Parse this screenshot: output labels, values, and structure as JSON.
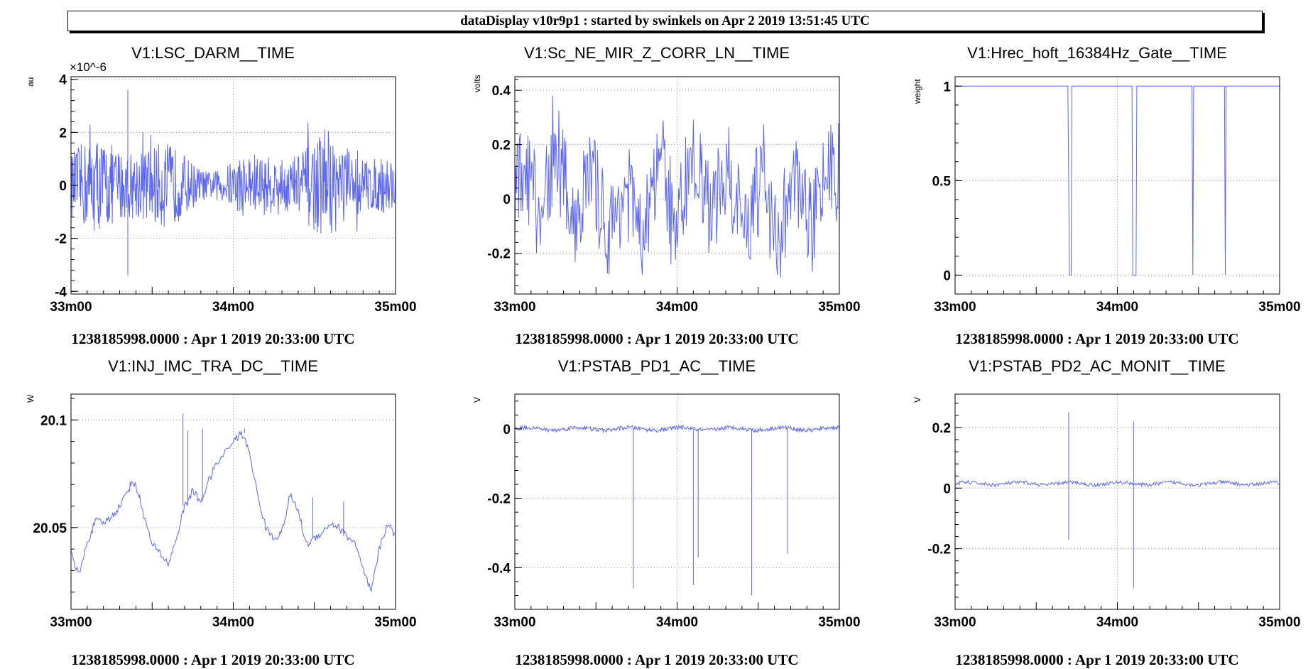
{
  "header": {
    "title": "dataDisplay v10r9p1 : started by swinkels on Apr  2 2019 13:51:45 UTC"
  },
  "footer_text": "1238185998.0000 : Apr  1 2019 20:33:00 UTC",
  "colors": {
    "trace": "#5c67f2",
    "grid": "#9a9a9a",
    "axis": "#000000"
  },
  "chart_data": [
    {
      "type": "line",
      "title": "V1:LSC_DARM__TIME",
      "ylabel": "au",
      "multiplier": "×10^-6",
      "xticks": [
        "33m00",
        "34m00",
        "35m00"
      ],
      "yticks": [
        "-4",
        "-2",
        "0",
        "2",
        "4"
      ],
      "ytick_values": [
        -4,
        -2,
        0,
        2,
        4
      ],
      "ylim": [
        -4.1,
        4.1
      ],
      "footer": "1238185998.0000 : Apr  1 2019 20:33:00 UTC",
      "series": [
        {
          "style": "noise",
          "values": {
            "amp": 1.6,
            "peak_max": 3.6,
            "peak_min": -3.4
          }
        }
      ]
    },
    {
      "type": "line",
      "title": "V1:Sc_NE_MIR_Z_CORR_LN__TIME",
      "ylabel": "volts",
      "xticks": [
        "33m00",
        "34m00",
        "35m00"
      ],
      "yticks": [
        "-0.2",
        "0",
        "0.2",
        "0.4"
      ],
      "ytick_values": [
        -0.2,
        0,
        0.2,
        0.4
      ],
      "ylim": [
        -0.35,
        0.45
      ],
      "footer": "1238185998.0000 : Apr  1 2019 20:33:00 UTC",
      "series": [
        {
          "style": "oscillation",
          "values": {
            "amp": 0.3,
            "max": 0.38,
            "min": -0.29
          }
        }
      ]
    },
    {
      "type": "line",
      "title": "V1:Hrec_hoft_16384Hz_Gate__TIME",
      "ylabel": "weight",
      "xticks": [
        "33m00",
        "34m00",
        "35m00"
      ],
      "yticks": [
        "0",
        "0.5",
        "1"
      ],
      "ytick_values": [
        0,
        0.5,
        1
      ],
      "ylim": [
        -0.1,
        1.05
      ],
      "footer": "1238185998.0000 : Apr  1 2019 20:33:00 UTC",
      "series": [
        {
          "style": "gate",
          "points": [
            [
              0,
              1
            ],
            [
              0.695,
              1
            ],
            [
              0.705,
              0
            ],
            [
              0.715,
              0
            ],
            [
              0.72,
              1
            ],
            [
              1.09,
              1
            ],
            [
              1.095,
              0
            ],
            [
              1.115,
              0
            ],
            [
              1.12,
              1
            ],
            [
              1.46,
              1
            ],
            [
              1.465,
              0
            ],
            [
              1.47,
              1
            ],
            [
              1.66,
              1
            ],
            [
              1.665,
              0
            ],
            [
              1.67,
              1
            ],
            [
              2,
              1
            ]
          ]
        }
      ]
    },
    {
      "type": "line",
      "title": "V1:INJ_IMC_TRA_DC__TIME",
      "ylabel": "W",
      "xticks": [
        "33m00",
        "34m00",
        "35m00"
      ],
      "yticks": [
        "20.05",
        "20.1"
      ],
      "ytick_values": [
        20.05,
        20.1
      ],
      "ylim": [
        20.012,
        20.112
      ],
      "footer": "1238185998.0000 : Apr  1 2019 20:33:00 UTC",
      "series": [
        {
          "style": "drift",
          "points": [
            [
              0,
              20.038
            ],
            [
              0.05,
              20.028
            ],
            [
              0.1,
              20.043
            ],
            [
              0.15,
              20.053
            ],
            [
              0.2,
              20.052
            ],
            [
              0.25,
              20.055
            ],
            [
              0.3,
              20.06
            ],
            [
              0.35,
              20.067
            ],
            [
              0.38,
              20.072
            ],
            [
              0.42,
              20.065
            ],
            [
              0.45,
              20.055
            ],
            [
              0.5,
              20.042
            ],
            [
              0.55,
              20.038
            ],
            [
              0.6,
              20.033
            ],
            [
              0.65,
              20.045
            ],
            [
              0.7,
              20.06
            ],
            [
              0.75,
              20.067
            ],
            [
              0.8,
              20.062
            ],
            [
              0.85,
              20.072
            ],
            [
              0.9,
              20.08
            ],
            [
              1.0,
              20.09
            ],
            [
              1.05,
              20.094
            ],
            [
              1.1,
              20.085
            ],
            [
              1.15,
              20.065
            ],
            [
              1.2,
              20.05
            ],
            [
              1.25,
              20.045
            ],
            [
              1.3,
              20.048
            ],
            [
              1.35,
              20.065
            ],
            [
              1.4,
              20.058
            ],
            [
              1.45,
              20.042
            ],
            [
              1.5,
              20.045
            ],
            [
              1.55,
              20.048
            ],
            [
              1.6,
              20.052
            ],
            [
              1.65,
              20.05
            ],
            [
              1.7,
              20.046
            ],
            [
              1.75,
              20.043
            ],
            [
              1.8,
              20.03
            ],
            [
              1.85,
              20.02
            ],
            [
              1.9,
              20.04
            ],
            [
              1.95,
              20.052
            ],
            [
              2,
              20.046
            ]
          ],
          "spikes": [
            [
              0.69,
              20.103
            ],
            [
              0.72,
              20.095
            ],
            [
              0.81,
              20.096
            ],
            [
              1.07,
              20.096
            ],
            [
              1.49,
              20.064
            ],
            [
              1.68,
              20.062
            ]
          ]
        }
      ]
    },
    {
      "type": "line",
      "title": "V1:PSTAB_PD1_AC__TIME",
      "ylabel": "V",
      "xticks": [
        "33m00",
        "34m00",
        "35m00"
      ],
      "yticks": [
        "-0.4",
        "-0.2",
        "0"
      ],
      "ytick_values": [
        -0.4,
        -0.2,
        0
      ],
      "ylim": [
        -0.52,
        0.1
      ],
      "footer": "1238185998.0000 : Apr  1 2019 20:33:00 UTC",
      "series": [
        {
          "style": "flat_spikes",
          "baseline": 0,
          "spikes": [
            [
              0.73,
              -0.46
            ],
            [
              1.1,
              -0.45
            ],
            [
              1.13,
              -0.37
            ],
            [
              1.46,
              -0.48
            ],
            [
              1.68,
              -0.36
            ]
          ]
        }
      ]
    },
    {
      "type": "line",
      "title": "V1:PSTAB_PD2_AC_MONIT__TIME",
      "ylabel": "V",
      "xticks": [
        "33m00",
        "34m00",
        "35m00"
      ],
      "yticks": [
        "-0.2",
        "0",
        "0.2"
      ],
      "ytick_values": [
        -0.2,
        0,
        0.2
      ],
      "ylim": [
        -0.4,
        0.31
      ],
      "footer": "1238185998.0000 : Apr  1 2019 20:33:00 UTC",
      "series": [
        {
          "style": "flat_spikes",
          "baseline": 0.015,
          "spikes": [
            [
              0.7,
              0.25,
              -0.17
            ],
            [
              1.1,
              0.22,
              -0.33
            ]
          ]
        }
      ]
    }
  ]
}
